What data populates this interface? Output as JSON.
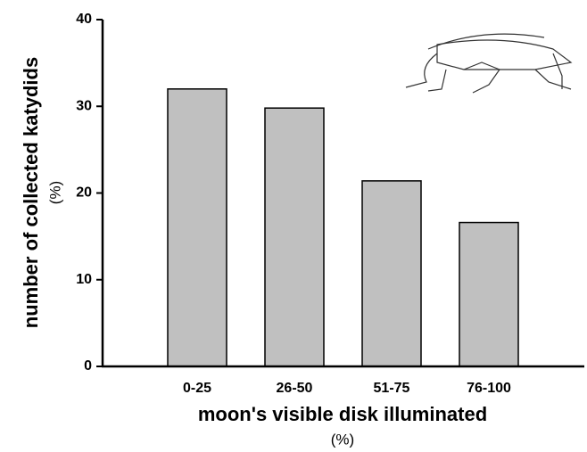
{
  "chart_data": {
    "type": "bar",
    "y_label": "number of collected katydids",
    "y_label_unit": "(%)",
    "x_label": "moon's visible disk illuminated",
    "x_label_unit": "(%)",
    "categories": [
      "0-25",
      "26-50",
      "51-75",
      "76-100"
    ],
    "values": [
      32.0,
      29.8,
      21.4,
      16.6
    ],
    "color": "#c0c0c0",
    "ylim": [
      0,
      40
    ],
    "yticks": [
      0,
      10,
      20,
      30,
      40
    ]
  }
}
